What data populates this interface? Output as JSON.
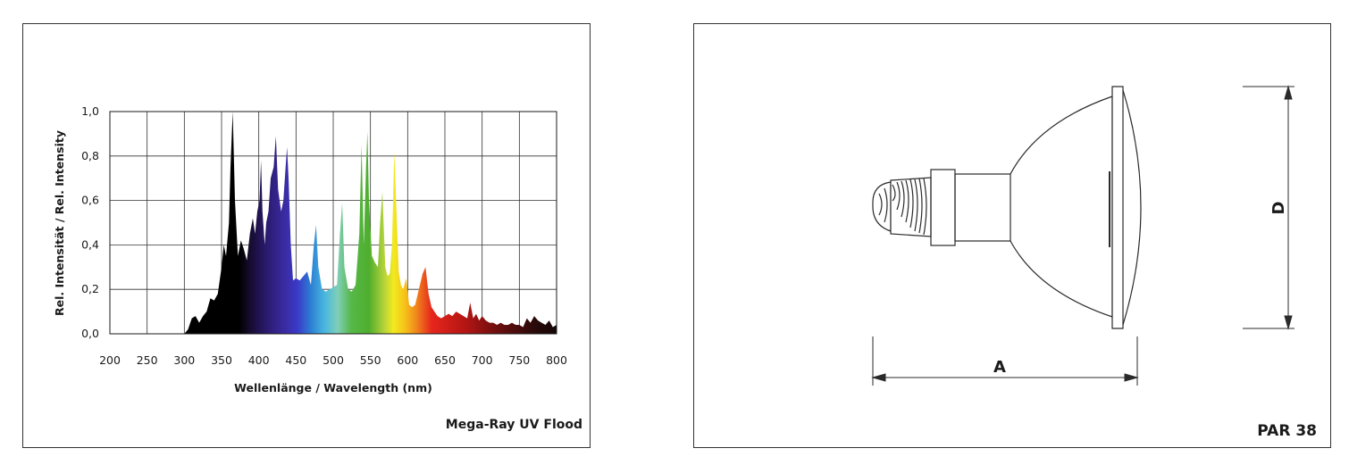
{
  "chart_data": {
    "type": "area",
    "title": "Mega-Ray UV Flood",
    "xlabel": "Wellenlänge / Wavelength (nm)",
    "ylabel": "Rel. Intensität / Rel. Intensity",
    "xlim": [
      200,
      800
    ],
    "ylim": [
      0,
      1.0
    ],
    "x_ticks": [
      "200",
      "250",
      "300",
      "350",
      "400",
      "450",
      "500",
      "550",
      "600",
      "650",
      "700",
      "750",
      "800"
    ],
    "y_ticks": [
      "0,0",
      "0,2",
      "0,4",
      "0,6",
      "0,8",
      "1,0"
    ],
    "grid": true,
    "fill": "wavelength-spectrum-gradient",
    "series": [
      {
        "x": [
          200,
          300,
          305,
          310,
          315,
          320,
          325,
          330,
          335,
          340,
          345,
          350,
          353,
          356,
          360,
          362,
          365,
          368,
          372,
          376,
          380,
          384,
          388,
          392,
          395,
          398,
          401,
          403,
          405,
          408,
          410,
          413,
          416,
          420,
          423,
          426,
          430,
          433,
          436,
          438,
          440,
          443,
          446,
          450,
          455,
          460,
          465,
          470,
          474,
          477,
          480,
          485,
          490,
          495,
          500,
          505,
          509,
          512,
          515,
          520,
          525,
          530,
          535,
          538,
          541,
          544,
          546,
          548,
          552,
          556,
          560,
          563,
          566,
          570,
          573,
          576,
          579,
          582,
          585,
          588,
          591,
          594,
          598,
          602,
          606,
          610,
          615,
          620,
          624,
          628,
          632,
          636,
          640,
          645,
          650,
          655,
          660,
          665,
          670,
          675,
          680,
          684,
          688,
          692,
          696,
          700,
          705,
          710,
          715,
          720,
          725,
          730,
          735,
          740,
          745,
          750,
          755,
          760,
          765,
          770,
          775,
          780,
          785,
          790,
          795,
          800
        ],
        "values": [
          0.0,
          0.0,
          0.02,
          0.07,
          0.08,
          0.05,
          0.08,
          0.1,
          0.16,
          0.15,
          0.18,
          0.3,
          0.4,
          0.35,
          0.5,
          0.75,
          1.0,
          0.6,
          0.35,
          0.42,
          0.38,
          0.33,
          0.45,
          0.52,
          0.45,
          0.55,
          0.6,
          0.78,
          0.55,
          0.4,
          0.5,
          0.55,
          0.7,
          0.75,
          0.89,
          0.65,
          0.55,
          0.6,
          0.75,
          0.84,
          0.7,
          0.4,
          0.24,
          0.25,
          0.24,
          0.26,
          0.28,
          0.22,
          0.4,
          0.49,
          0.3,
          0.2,
          0.19,
          0.2,
          0.21,
          0.22,
          0.45,
          0.59,
          0.3,
          0.2,
          0.19,
          0.22,
          0.45,
          0.85,
          0.4,
          0.75,
          0.91,
          0.6,
          0.35,
          0.32,
          0.3,
          0.5,
          0.64,
          0.3,
          0.26,
          0.27,
          0.4,
          0.82,
          0.55,
          0.28,
          0.22,
          0.2,
          0.25,
          0.13,
          0.12,
          0.13,
          0.2,
          0.27,
          0.3,
          0.18,
          0.12,
          0.1,
          0.08,
          0.07,
          0.08,
          0.09,
          0.08,
          0.1,
          0.09,
          0.08,
          0.07,
          0.14,
          0.07,
          0.09,
          0.06,
          0.08,
          0.06,
          0.05,
          0.05,
          0.04,
          0.05,
          0.04,
          0.04,
          0.05,
          0.04,
          0.04,
          0.03,
          0.07,
          0.05,
          0.08,
          0.06,
          0.05,
          0.04,
          0.06,
          0.03,
          0.04
        ]
      }
    ]
  },
  "diagram": {
    "caption": "PAR 38",
    "dimension_a": "A",
    "dimension_d": "D"
  },
  "colors": {
    "line": "#1a1a1a",
    "grid": "#333333"
  }
}
